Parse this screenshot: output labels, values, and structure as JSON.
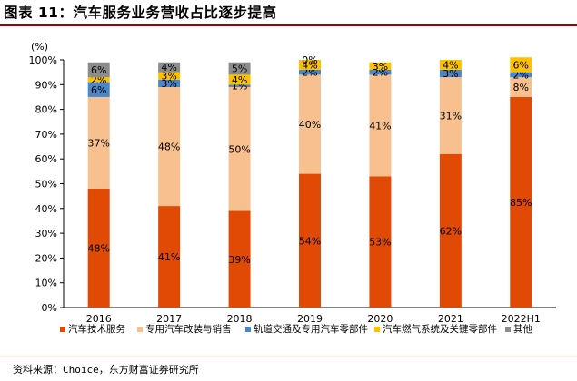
{
  "header": {
    "title": "图表 11：汽车服务业务营收占比逐步提高"
  },
  "footer": {
    "source": "资料来源：Choice，东方财富证券研究所"
  },
  "chart_data": {
    "type": "bar",
    "stacked": true,
    "unit_label": "(%)",
    "categories": [
      "2016",
      "2017",
      "2018",
      "2019",
      "2020",
      "2021",
      "2022H1"
    ],
    "y_ticks": [
      "0%",
      "10%",
      "20%",
      "30%",
      "40%",
      "50%",
      "60%",
      "70%",
      "80%",
      "90%",
      "100%"
    ],
    "ylim": [
      0,
      100
    ],
    "legend_position": "bottom",
    "series": [
      {
        "name": "汽车技术服务",
        "color": "#e04a05",
        "values": [
          48,
          41,
          39,
          54,
          53,
          62,
          85
        ],
        "labels": [
          "48%",
          "41%",
          "39%",
          "54%",
          "53%",
          "62%",
          "85%"
        ]
      },
      {
        "name": "专用汽车改装与销售",
        "color": "#f9c08f",
        "values": [
          37,
          48,
          50,
          40,
          41,
          31,
          8
        ],
        "labels": [
          "37%",
          "48%",
          "50%",
          "40%",
          "41%",
          "31%",
          "8%"
        ]
      },
      {
        "name": "轨道交通及专用汽车零部件",
        "color": "#4a86c8",
        "values": [
          6,
          3,
          1,
          2,
          2,
          3,
          2
        ],
        "labels": [
          "6%",
          "3%",
          "1%",
          "2%",
          "2%",
          "3%",
          "2%"
        ]
      },
      {
        "name": "汽车燃气系统及关键零部件",
        "color": "#ffc000",
        "values": [
          2,
          3,
          4,
          4,
          3,
          4,
          6
        ],
        "labels": [
          "2%",
          "3%",
          "4%",
          "4%",
          "3%",
          "4%",
          "6%"
        ]
      },
      {
        "name": "其他",
        "color": "#8c8c8c",
        "values": [
          6,
          4,
          5,
          0,
          0,
          0,
          0
        ],
        "labels": [
          "6%",
          "4%",
          "5%",
          "0%",
          null,
          null,
          null
        ]
      }
    ]
  }
}
